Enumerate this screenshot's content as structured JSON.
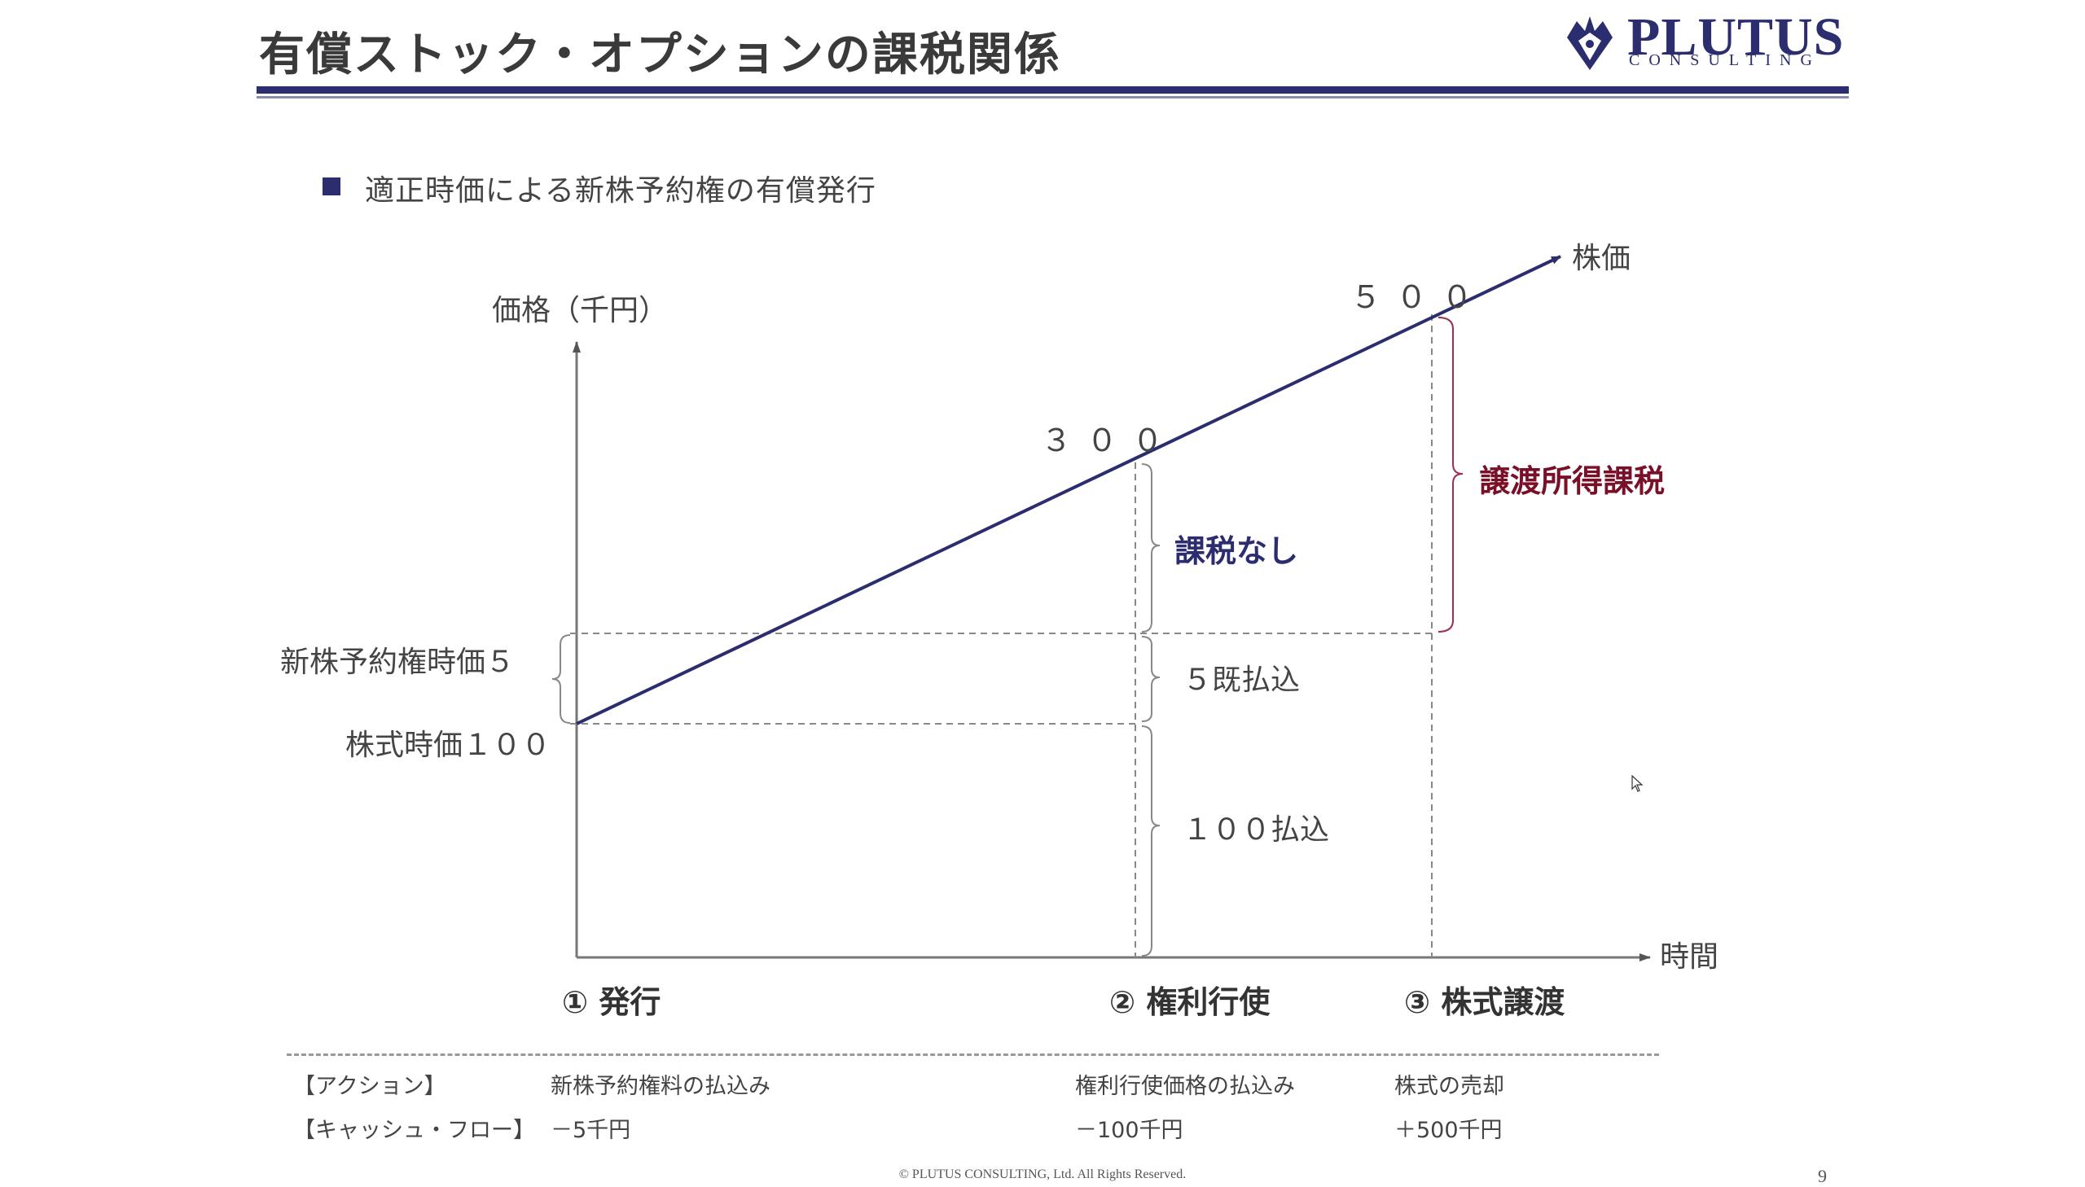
{
  "slide": {
    "title": "有償ストック・オプションの課税関係",
    "logo": {
      "name": "PLUTUS",
      "subtitle": "CONSULTING"
    },
    "bullet": "適正時価による新株予約権の有償発行",
    "page_number": "9",
    "copyright": "© PLUTUS CONSULTING, Ltd. All Rights Reserved."
  },
  "diagram": {
    "y_axis_label": "価格（千円）",
    "x_axis_label": "時間",
    "line_label": "株価",
    "left_labels": {
      "warrant": "新株予約権時価５",
      "stock": "株式時価１００"
    },
    "values": {
      "exercise": "３００",
      "transfer": "５００"
    },
    "brackets": {
      "no_tax": "課税なし",
      "paid_5": "５既払込",
      "paid_100": "１００払込",
      "capital_gains": "譲渡所得課税"
    },
    "stages": [
      "① 発行",
      "② 権利行使",
      "③ 株式譲渡"
    ]
  },
  "chart_data": {
    "type": "line",
    "x": [
      "① 発行",
      "② 権利行使",
      "③ 株式譲渡"
    ],
    "series": [
      {
        "name": "株価",
        "values": [
          100,
          300,
          500
        ]
      }
    ]
  },
  "table": {
    "rows": [
      {
        "header": "【アクション】",
        "cells": [
          "新株予約権料の払込み",
          "権利行使価格の払込み",
          "株式の売却"
        ]
      },
      {
        "header": "【キャッシュ・フロー】",
        "cells": [
          "－5千円",
          "－100千円",
          "＋500千円"
        ]
      }
    ]
  },
  "colors": {
    "navy": "#2b2d6e",
    "accent_red": "#7a1028"
  }
}
